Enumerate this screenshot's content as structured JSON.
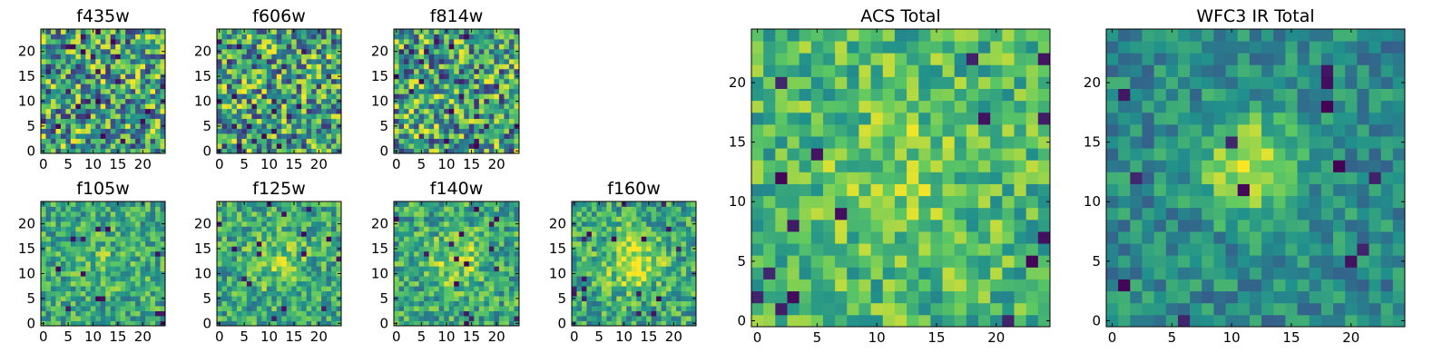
{
  "figure": {
    "colormap": "viridis",
    "colormap_stops": [
      "#440154",
      "#3b528b",
      "#21918c",
      "#5ec962",
      "#fde725"
    ]
  },
  "chart_data": [
    {
      "type": "heatmap",
      "title": "f435w",
      "grid": [
        25,
        25
      ],
      "xlim": [
        0,
        25
      ],
      "ylim": [
        0,
        25
      ],
      "x_ticks": [
        "0",
        "5",
        "10",
        "15",
        "20"
      ],
      "y_ticks": [
        "0",
        "5",
        "10",
        "15",
        "20"
      ]
    },
    {
      "type": "heatmap",
      "title": "f606w",
      "grid": [
        25,
        25
      ],
      "xlim": [
        0,
        25
      ],
      "ylim": [
        0,
        25
      ],
      "x_ticks": [
        "0",
        "5",
        "10",
        "15",
        "20"
      ],
      "y_ticks": [
        "0",
        "5",
        "10",
        "15",
        "20"
      ]
    },
    {
      "type": "heatmap",
      "title": "f814w",
      "grid": [
        25,
        25
      ],
      "xlim": [
        0,
        25
      ],
      "ylim": [
        0,
        25
      ],
      "x_ticks": [
        "0",
        "5",
        "10",
        "15",
        "20"
      ],
      "y_ticks": [
        "0",
        "5",
        "10",
        "15",
        "20"
      ]
    },
    {
      "type": "heatmap",
      "title": "f105w",
      "grid": [
        25,
        25
      ],
      "xlim": [
        0,
        25
      ],
      "ylim": [
        0,
        25
      ],
      "x_ticks": [
        "0",
        "5",
        "10",
        "15",
        "20"
      ],
      "y_ticks": [
        "0",
        "5",
        "10",
        "15",
        "20"
      ]
    },
    {
      "type": "heatmap",
      "title": "f125w",
      "grid": [
        25,
        25
      ],
      "xlim": [
        0,
        25
      ],
      "ylim": [
        0,
        25
      ],
      "x_ticks": [
        "0",
        "5",
        "10",
        "15",
        "20"
      ],
      "y_ticks": [
        "0",
        "5",
        "10",
        "15",
        "20"
      ]
    },
    {
      "type": "heatmap",
      "title": "f140w",
      "grid": [
        25,
        25
      ],
      "xlim": [
        0,
        25
      ],
      "ylim": [
        0,
        25
      ],
      "x_ticks": [
        "0",
        "5",
        "10",
        "15",
        "20"
      ],
      "y_ticks": [
        "0",
        "5",
        "10",
        "15",
        "20"
      ]
    },
    {
      "type": "heatmap",
      "title": "f160w",
      "grid": [
        25,
        25
      ],
      "xlim": [
        0,
        25
      ],
      "ylim": [
        0,
        25
      ],
      "x_ticks": [
        "0",
        "5",
        "10",
        "15",
        "20"
      ],
      "y_ticks": [
        "0",
        "5",
        "10",
        "15",
        "20"
      ]
    },
    {
      "type": "heatmap",
      "title": "ACS Total",
      "grid": [
        25,
        25
      ],
      "xlim": [
        0,
        25
      ],
      "ylim": [
        0,
        25
      ],
      "x_ticks": [
        "0",
        "5",
        "10",
        "15",
        "20"
      ],
      "y_ticks": [
        "0",
        "5",
        "10",
        "15",
        "20"
      ]
    },
    {
      "type": "heatmap",
      "title": "WFC3 IR Total",
      "grid": [
        25,
        25
      ],
      "xlim": [
        0,
        25
      ],
      "ylim": [
        0,
        25
      ],
      "x_ticks": [
        "0",
        "5",
        "10",
        "15",
        "20"
      ],
      "y_ticks": [
        "0",
        "5",
        "10",
        "15",
        "20"
      ]
    }
  ]
}
